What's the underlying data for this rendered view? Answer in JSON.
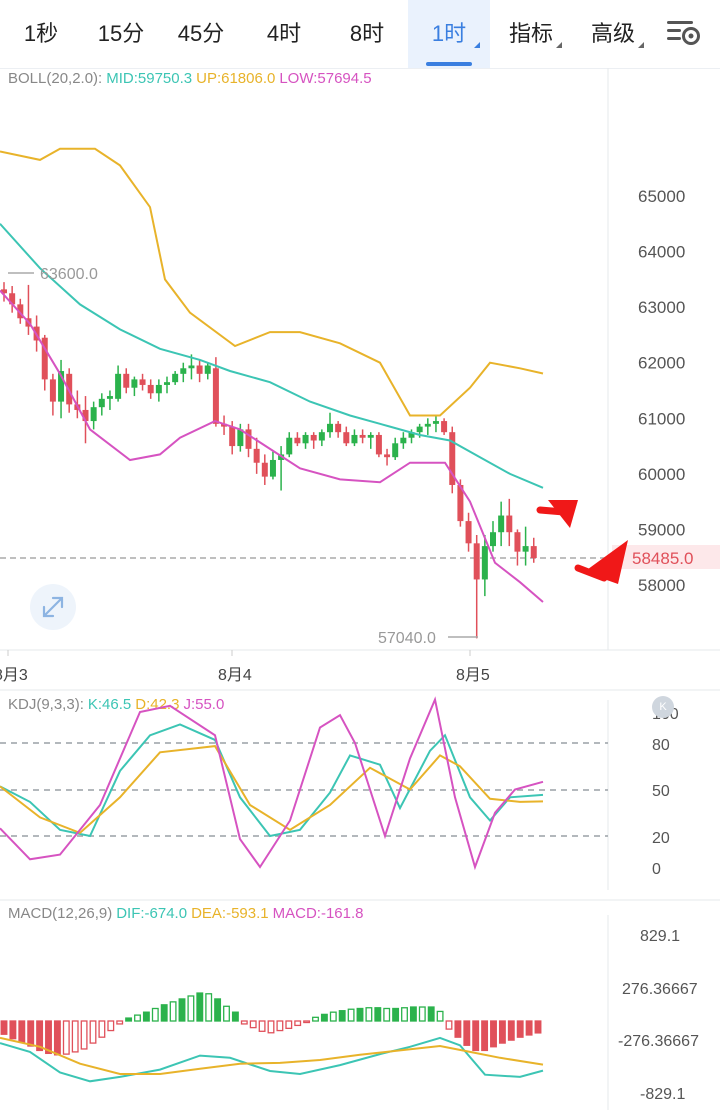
{
  "toolbar": {
    "tabs": [
      {
        "label": "1秒",
        "active": false,
        "dropdown": false
      },
      {
        "label": "15分",
        "active": false,
        "dropdown": false
      },
      {
        "label": "45分",
        "active": false,
        "dropdown": false
      },
      {
        "label": "4时",
        "active": false,
        "dropdown": false
      },
      {
        "label": "8时",
        "active": false,
        "dropdown": false
      },
      {
        "label": "1时",
        "active": true,
        "dropdown": true
      },
      {
        "label": "指标",
        "active": false,
        "dropdown": true
      },
      {
        "label": "高级",
        "active": false,
        "dropdown": true
      }
    ],
    "settings_icon": "chart-settings-icon"
  },
  "colors": {
    "up": "#2bb24c",
    "down": "#e0505a",
    "mid": "#3cc5b4",
    "upper": "#e8b32a",
    "lower": "#d653c1",
    "accent": "#3a7fe0",
    "arrow": "#f01818"
  },
  "boll_legend": {
    "name": "BOLL(20,2.0):",
    "mid": "MID:59750.3",
    "up": "UP:61806.0",
    "low": "LOW:57694.5"
  },
  "kdj_legend": {
    "name": "KDJ(9,3,3):",
    "k": "K:46.5",
    "d": "D:42.3",
    "j": "J:55.0"
  },
  "macd_legend": {
    "name": "MACD(12,26,9)",
    "dif": "DIF:-674.0",
    "dea": "DEA:-593.1",
    "macd": "MACD:-161.8"
  },
  "annotations": {
    "high_label": "63600.0",
    "low_label": "57040.0",
    "current_price": "58485.0",
    "k_button": "K"
  },
  "chart_data": [
    {
      "type": "candlestick",
      "title": "BOLL(20,2.0)",
      "y_ticks": [
        "65000",
        "64000",
        "63000",
        "62000",
        "61000",
        "60000",
        "59000",
        "58000"
      ],
      "ylim": [
        57000,
        66500
      ],
      "x_ticks": [
        "8月3",
        "8月4",
        "8月5"
      ],
      "last_price": 58485.0,
      "candles": [
        [
          63320,
          63450,
          63100,
          63250
        ],
        [
          63250,
          63380,
          62900,
          63050
        ],
        [
          63050,
          63150,
          62700,
          62800
        ],
        [
          62800,
          63400,
          62500,
          62650
        ],
        [
          62650,
          62850,
          62200,
          62400
        ],
        [
          62450,
          62500,
          61500,
          61700
        ],
        [
          61700,
          61800,
          61050,
          61300
        ],
        [
          61300,
          62050,
          61000,
          61850
        ],
        [
          61800,
          61900,
          61100,
          61250
        ],
        [
          61250,
          61500,
          61000,
          61150
        ],
        [
          61150,
          61400,
          60550,
          60950
        ],
        [
          60950,
          61300,
          60800,
          61200
        ],
        [
          61200,
          61450,
          61050,
          61350
        ],
        [
          61350,
          61500,
          61150,
          61400
        ],
        [
          61350,
          61950,
          61300,
          61800
        ],
        [
          61800,
          61900,
          61450,
          61550
        ],
        [
          61550,
          61750,
          61400,
          61700
        ],
        [
          61700,
          61800,
          61500,
          61600
        ],
        [
          61600,
          61700,
          61350,
          61450
        ],
        [
          61450,
          61700,
          61300,
          61600
        ],
        [
          61600,
          61750,
          61450,
          61650
        ],
        [
          61650,
          61850,
          61600,
          61800
        ],
        [
          61800,
          62000,
          61650,
          61900
        ],
        [
          61900,
          62150,
          61700,
          61950
        ],
        [
          61950,
          62050,
          61650,
          61800
        ],
        [
          61800,
          62000,
          61700,
          61950
        ],
        [
          61900,
          62100,
          60850,
          60900
        ],
        [
          60900,
          61050,
          60700,
          60850
        ],
        [
          60850,
          60950,
          60350,
          60500
        ],
        [
          60500,
          60900,
          60400,
          60800
        ],
        [
          60800,
          60900,
          60300,
          60450
        ],
        [
          60450,
          60650,
          60000,
          60200
        ],
        [
          60200,
          60350,
          59800,
          59950
        ],
        [
          59950,
          60400,
          59900,
          60250
        ],
        [
          60250,
          60500,
          59700,
          60350
        ],
        [
          60350,
          60750,
          60300,
          60650
        ],
        [
          60650,
          60750,
          60500,
          60550
        ],
        [
          60550,
          60750,
          60450,
          60700
        ],
        [
          60700,
          60750,
          60450,
          60600
        ],
        [
          60600,
          60800,
          60500,
          60750
        ],
        [
          60750,
          61100,
          60650,
          60900
        ],
        [
          60900,
          60950,
          60650,
          60750
        ],
        [
          60750,
          60850,
          60500,
          60550
        ],
        [
          60550,
          60800,
          60500,
          60700
        ],
        [
          60700,
          60800,
          60550,
          60650
        ],
        [
          60650,
          60750,
          60450,
          60700
        ],
        [
          60700,
          60750,
          60300,
          60350
        ],
        [
          60350,
          60450,
          60150,
          60300
        ],
        [
          60300,
          60650,
          60250,
          60550
        ],
        [
          60550,
          60750,
          60450,
          60650
        ],
        [
          60650,
          60800,
          60550,
          60750
        ],
        [
          60750,
          60900,
          60650,
          60850
        ],
        [
          60850,
          61000,
          60700,
          60900
        ],
        [
          60900,
          61050,
          60750,
          60950
        ],
        [
          60950,
          61000,
          60700,
          60750
        ],
        [
          60750,
          60850,
          59650,
          59800
        ],
        [
          59800,
          59900,
          59050,
          59150
        ],
        [
          59150,
          59300,
          58600,
          58750
        ],
        [
          58750,
          58900,
          57040,
          58100
        ],
        [
          58100,
          58900,
          57800,
          58700
        ],
        [
          58700,
          59150,
          58600,
          58950
        ],
        [
          58950,
          59500,
          58700,
          59250
        ],
        [
          59250,
          59550,
          58700,
          58950
        ],
        [
          58950,
          59000,
          58350,
          58600
        ],
        [
          58600,
          59050,
          58350,
          58700
        ],
        [
          58700,
          58850,
          58400,
          58485
        ]
      ],
      "boll_mid": [
        [
          0,
          64500
        ],
        [
          40,
          63700
        ],
        [
          80,
          63050
        ],
        [
          120,
          62600
        ],
        [
          160,
          62250
        ],
        [
          200,
          62050
        ],
        [
          230,
          61850
        ],
        [
          270,
          61650
        ],
        [
          310,
          61300
        ],
        [
          350,
          61050
        ],
        [
          390,
          60850
        ],
        [
          420,
          60700
        ],
        [
          450,
          60600
        ],
        [
          480,
          60300
        ],
        [
          510,
          60000
        ],
        [
          543,
          59750
        ]
      ],
      "boll_upper": [
        [
          0,
          65800
        ],
        [
          40,
          65650
        ],
        [
          60,
          65850
        ],
        [
          95,
          65850
        ],
        [
          120,
          65550
        ],
        [
          150,
          64800
        ],
        [
          165,
          63500
        ],
        [
          190,
          62900
        ],
        [
          235,
          62300
        ],
        [
          270,
          62550
        ],
        [
          300,
          62550
        ],
        [
          340,
          62350
        ],
        [
          380,
          62000
        ],
        [
          410,
          61050
        ],
        [
          440,
          61050
        ],
        [
          470,
          61550
        ],
        [
          490,
          62000
        ],
        [
          520,
          61900
        ],
        [
          543,
          61806
        ]
      ],
      "boll_lower": [
        [
          0,
          63300
        ],
        [
          30,
          62700
        ],
        [
          60,
          61800
        ],
        [
          90,
          60800
        ],
        [
          130,
          60250
        ],
        [
          160,
          60350
        ],
        [
          180,
          60650
        ],
        [
          215,
          60950
        ],
        [
          240,
          60800
        ],
        [
          270,
          60450
        ],
        [
          300,
          60100
        ],
        [
          340,
          59900
        ],
        [
          380,
          59850
        ],
        [
          410,
          60200
        ],
        [
          445,
          60200
        ],
        [
          470,
          59500
        ],
        [
          495,
          58400
        ],
        [
          520,
          58050
        ],
        [
          543,
          57694.5
        ]
      ]
    },
    {
      "type": "line",
      "title": "KDJ(9,3,3)",
      "y_ticks": [
        "100",
        "80",
        "50",
        "20",
        "0"
      ],
      "ylim": [
        0,
        100
      ],
      "series": [
        {
          "name": "K",
          "points": [
            [
              0,
              52
            ],
            [
              30,
              42
            ],
            [
              60,
              24
            ],
            [
              90,
              20
            ],
            [
              120,
              62
            ],
            [
              150,
              85
            ],
            [
              180,
              92
            ],
            [
              215,
              82
            ],
            [
              240,
              45
            ],
            [
              270,
              20
            ],
            [
              300,
              24
            ],
            [
              330,
              48
            ],
            [
              350,
              72
            ],
            [
              380,
              66
            ],
            [
              400,
              38
            ],
            [
              430,
              75
            ],
            [
              445,
              85
            ],
            [
              470,
              45
            ],
            [
              490,
              30
            ],
            [
              510,
              45
            ],
            [
              543,
              46.5
            ]
          ]
        },
        {
          "name": "D",
          "points": [
            [
              0,
              52
            ],
            [
              40,
              32
            ],
            [
              80,
              22
            ],
            [
              120,
              45
            ],
            [
              160,
              74
            ],
            [
              215,
              78
            ],
            [
              250,
              40
            ],
            [
              290,
              24
            ],
            [
              330,
              40
            ],
            [
              370,
              64
            ],
            [
              410,
              50
            ],
            [
              440,
              72
            ],
            [
              460,
              65
            ],
            [
              490,
              44
            ],
            [
              520,
              42
            ],
            [
              543,
              42.3
            ]
          ]
        },
        {
          "name": "J",
          "points": [
            [
              0,
              25
            ],
            [
              30,
              5
            ],
            [
              60,
              8
            ],
            [
              100,
              40
            ],
            [
              140,
              100
            ],
            [
              170,
              104
            ],
            [
              215,
              85
            ],
            [
              240,
              18
            ],
            [
              260,
              0
            ],
            [
              290,
              30
            ],
            [
              320,
              90
            ],
            [
              340,
              98
            ],
            [
              355,
              80
            ],
            [
              385,
              20
            ],
            [
              410,
              70
            ],
            [
              435,
              108
            ],
            [
              455,
              45
            ],
            [
              475,
              0
            ],
            [
              495,
              35
            ],
            [
              515,
              50
            ],
            [
              543,
              55
            ]
          ]
        }
      ]
    },
    {
      "type": "bar+line",
      "title": "MACD(12,26,9)",
      "y_ticks": [
        "829.1",
        "276.36667",
        "-276.36667",
        "-829.1"
      ],
      "ylim": [
        -829.1,
        829.1
      ],
      "histogram": [
        -180,
        -240,
        -290,
        -340,
        -400,
        -440,
        -460,
        -450,
        -420,
        -380,
        -300,
        -220,
        -130,
        -40,
        40,
        80,
        120,
        170,
        220,
        260,
        300,
        340,
        380,
        370,
        300,
        200,
        120,
        -40,
        -90,
        -140,
        -160,
        -130,
        -100,
        -60,
        -20,
        50,
        90,
        120,
        140,
        160,
        170,
        180,
        180,
        170,
        170,
        180,
        190,
        190,
        190,
        130,
        -110,
        -220,
        -330,
        -400,
        -400,
        -350,
        -300,
        -260,
        -220,
        -190,
        -162
      ],
      "series": [
        {
          "name": "DIF",
          "points": [
            [
              0,
              -300
            ],
            [
              30,
              -420
            ],
            [
              60,
              -700
            ],
            [
              90,
              -820
            ],
            [
              120,
              -760
            ],
            [
              160,
              -660
            ],
            [
              200,
              -470
            ],
            [
              230,
              -500
            ],
            [
              270,
              -680
            ],
            [
              300,
              -720
            ],
            [
              340,
              -600
            ],
            [
              380,
              -450
            ],
            [
              410,
              -350
            ],
            [
              440,
              -230
            ],
            [
              460,
              -330
            ],
            [
              485,
              -730
            ],
            [
              520,
              -760
            ],
            [
              543,
              -674
            ]
          ]
        },
        {
          "name": "DEA",
          "points": [
            [
              0,
              -230
            ],
            [
              40,
              -350
            ],
            [
              80,
              -580
            ],
            [
              120,
              -720
            ],
            [
              160,
              -720
            ],
            [
              200,
              -650
            ],
            [
              240,
              -580
            ],
            [
              280,
              -570
            ],
            [
              320,
              -530
            ],
            [
              360,
              -460
            ],
            [
              400,
              -400
            ],
            [
              440,
              -340
            ],
            [
              470,
              -420
            ],
            [
              500,
              -500
            ],
            [
              543,
              -593.1
            ]
          ]
        }
      ]
    }
  ]
}
